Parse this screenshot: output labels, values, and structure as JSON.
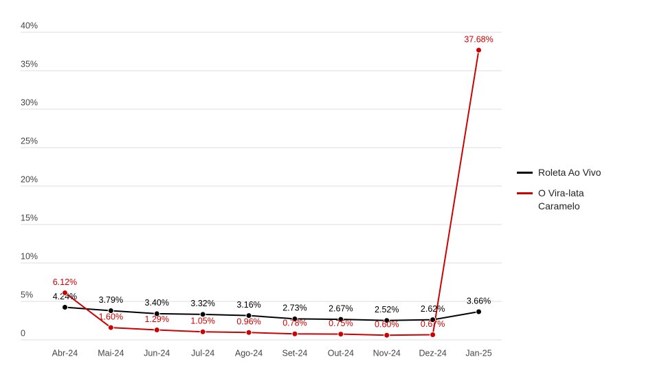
{
  "chart_data": {
    "type": "line",
    "categories": [
      "Abr-24",
      "Mai-24",
      "Jun-24",
      "Jul-24",
      "Ago-24",
      "Set-24",
      "Out-24",
      "Nov-24",
      "Dez-24",
      "Jan-25"
    ],
    "series": [
      {
        "name": "Roleta Ao Vivo",
        "color": "#000000",
        "values": [
          4.24,
          3.79,
          3.4,
          3.32,
          3.16,
          2.73,
          2.67,
          2.52,
          2.62,
          3.66
        ],
        "value_labels": [
          "4.24%",
          "3.79%",
          "3.40%",
          "3.32%",
          "3.16%",
          "2.73%",
          "2.67%",
          "2.52%",
          "2.62%",
          "3.66%"
        ]
      },
      {
        "name": "O Vira-lata Caramelo",
        "color": "#cc0000",
        "values": [
          6.12,
          1.6,
          1.29,
          1.05,
          0.96,
          0.78,
          0.75,
          0.6,
          0.67,
          37.68
        ],
        "value_labels": [
          "6.12%",
          "1.60%",
          "1.29%",
          "1.05%",
          "0.96%",
          "0.78%",
          "0.75%",
          "0.60%",
          "0.67%",
          "37.68%"
        ]
      }
    ],
    "ylim": [
      0,
      40
    ],
    "yticks": [
      0,
      {
        "value": 5,
        "label": "5%"
      },
      {
        "value": 10,
        "label": "10%"
      },
      {
        "value": 15,
        "label": "15%"
      },
      {
        "value": 20,
        "label": "20%"
      },
      {
        "value": 25,
        "label": "25%"
      },
      {
        "value": 30,
        "label": "30%"
      },
      {
        "value": 35,
        "label": "35%"
      },
      {
        "value": 40,
        "label": "40%"
      }
    ],
    "grid": true,
    "legend": "right"
  }
}
